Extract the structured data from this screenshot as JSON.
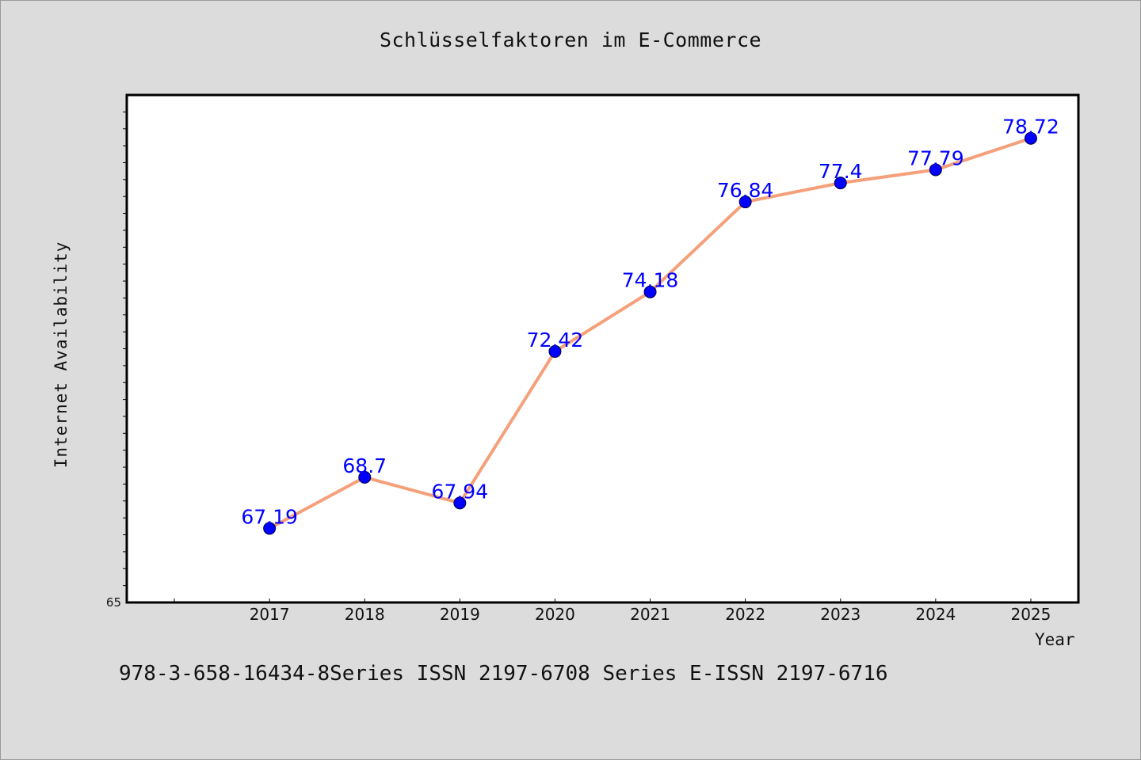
{
  "chart_data": {
    "type": "line",
    "title": "Schlüsselfaktoren im E-Commerce",
    "xlabel": "Year",
    "ylabel": "Internet Availability",
    "categories": [
      "2017",
      "2018",
      "2019",
      "2020",
      "2021",
      "2022",
      "2023",
      "2024",
      "2025"
    ],
    "series": [
      {
        "values": [
          67.19,
          68.7,
          67.94,
          72.42,
          74.18,
          76.84,
          77.4,
          77.79,
          78.72
        ],
        "data_labels": [
          "67.19",
          "68.7",
          "67.94",
          "72.42",
          "74.18",
          "76.84",
          "77.4",
          "77.79",
          "78.72"
        ]
      }
    ],
    "y_tick_labels": [
      "65"
    ],
    "ylim": [
      65,
      80
    ],
    "xlim": [
      2015.5,
      2025.5
    ],
    "grid": false,
    "legend": "none",
    "line_color": "#f4a07a",
    "marker_color": "#0000ff",
    "data_label_color": "#0000ff"
  },
  "footer": "978-3-658-16434-8Series ISSN 2197-6708 Series E-ISSN 2197-6716"
}
